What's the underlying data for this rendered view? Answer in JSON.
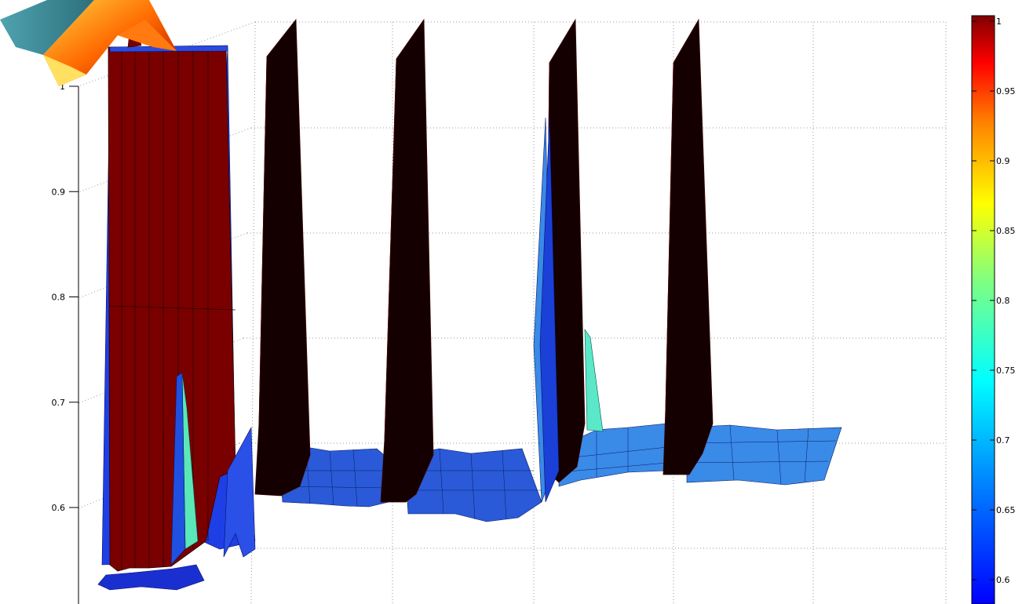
{
  "chart_data": {
    "type": "surface",
    "zlim": [
      0.5,
      1.05
    ],
    "z_ticks": [
      "0.6",
      "0.7",
      "0.8",
      "0.9",
      "1"
    ],
    "colorbar_ticks": [
      "0.6",
      "0.65",
      "0.7",
      "0.75",
      "0.8",
      "0.85",
      "0.9",
      "0.95",
      "1"
    ],
    "colorbar_range": [
      0.58,
      1.0
    ],
    "colormap": "jet",
    "grid": true,
    "legend": "colorbar-right",
    "features": [
      {
        "kind": "block",
        "peak": 0.99,
        "base": 0.54,
        "color": "#7a0000"
      },
      {
        "kind": "spike",
        "peak": 1.0,
        "base": 0.61
      },
      {
        "kind": "spike",
        "peak": 1.0,
        "base": 0.61
      },
      {
        "kind": "spike",
        "peak": 1.0,
        "base": 0.62
      },
      {
        "kind": "spike",
        "peak": 1.0,
        "base": 0.63
      }
    ],
    "plateaus": [
      {
        "level": 0.64,
        "color": "#2a5ad8"
      },
      {
        "level": 0.63,
        "color": "#2a5ad8"
      },
      {
        "level": 0.66,
        "color": "#3a8ae8"
      },
      {
        "level": 0.665,
        "color": "#3a8ae8"
      }
    ]
  },
  "logo": {
    "name": "matlab-logo-icon"
  }
}
